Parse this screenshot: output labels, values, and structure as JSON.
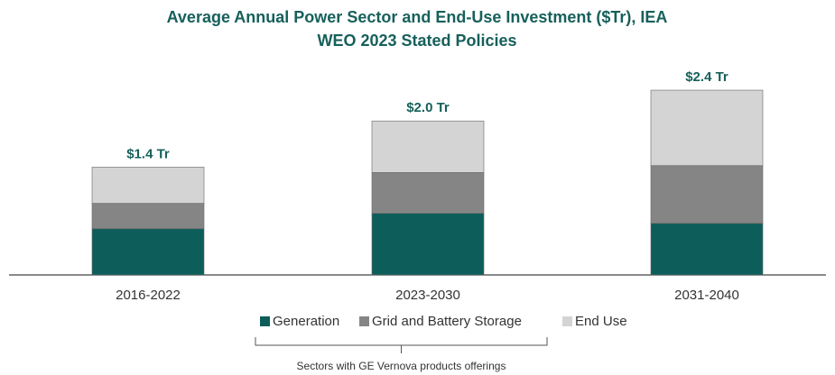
{
  "chart_data": {
    "type": "stacked_bar",
    "title": [
      "Average Annual Power Sector and End-Use Investment ($Tr), IEA",
      "WEO 2023 Stated Policies"
    ],
    "categories": [
      "2016-2022",
      "2023-2030",
      "2031-2040"
    ],
    "series": [
      {
        "name": "Generation",
        "color": "#0d5e5a",
        "values": [
          0.6,
          0.8,
          0.67
        ]
      },
      {
        "name": "Grid and Battery Storage",
        "color": "#858585",
        "values": [
          0.33,
          0.53,
          0.75
        ]
      },
      {
        "name": "End Use",
        "color": "#d4d4d4",
        "values": [
          0.47,
          0.67,
          0.98
        ]
      }
    ],
    "totals": [
      1.4,
      2.0,
      2.4
    ],
    "total_labels": [
      "$1.4 Tr",
      "$2.0 Tr",
      "$2.4 Tr"
    ],
    "annotation": "Sectors with GE Vernova products offerings"
  }
}
